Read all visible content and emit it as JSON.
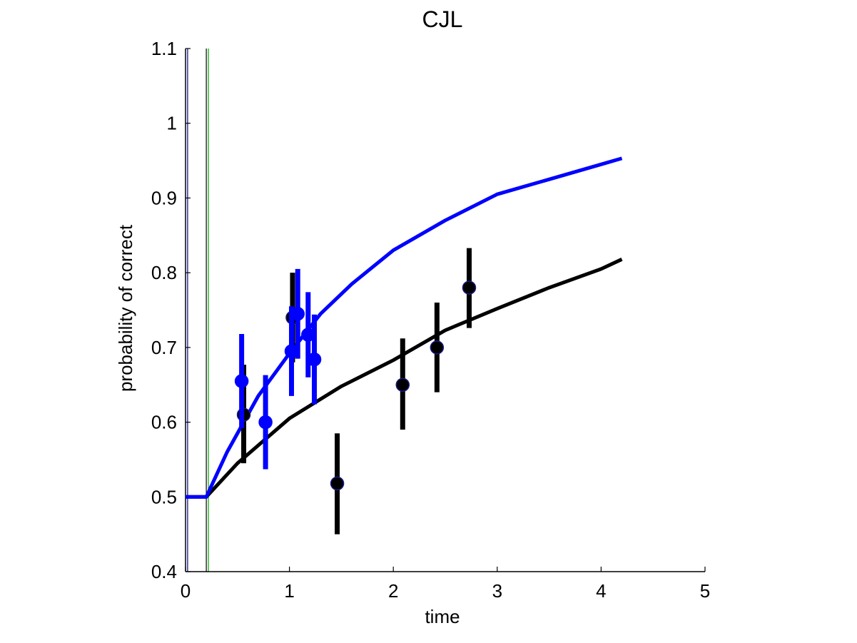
{
  "chart_data": {
    "type": "line",
    "title": "CJL",
    "xlabel": "time",
    "ylabel": "probability of correct",
    "xlim": [
      0,
      5
    ],
    "ylim": [
      0.4,
      1.1
    ],
    "xticks": [
      "0",
      "1",
      "2",
      "3",
      "4",
      "5"
    ],
    "yticks": [
      "0.4",
      "0.5",
      "0.6",
      "0.7",
      "0.8",
      "0.9",
      "1",
      "1.1"
    ],
    "grid": false,
    "reference_lines": [
      {
        "x": 0.02,
        "color": "#000080"
      },
      {
        "x": 0.2,
        "color": "#000000"
      },
      {
        "x": 0.22,
        "color": "#00aa00"
      }
    ],
    "series": [
      {
        "color": "#000000",
        "curve": {
          "x": [
            0,
            0.2,
            0.5,
            1.0,
            1.5,
            2.0,
            2.5,
            3.0,
            3.5,
            4.0,
            4.2
          ],
          "y": [
            0.5,
            0.5,
            0.545,
            0.605,
            0.648,
            0.683,
            0.723,
            0.752,
            0.78,
            0.805,
            0.818
          ]
        },
        "points": [
          {
            "x": 0.56,
            "y": 0.61,
            "err": [
              0.545,
              0.677
            ]
          },
          {
            "x": 1.03,
            "y": 0.74,
            "err": [
              0.68,
              0.8
            ]
          },
          {
            "x": 1.46,
            "y": 0.518,
            "err": [
              0.45,
              0.585
            ]
          },
          {
            "x": 2.09,
            "y": 0.65,
            "err": [
              0.59,
              0.712
            ]
          },
          {
            "x": 2.42,
            "y": 0.7,
            "err": [
              0.64,
              0.76
            ]
          },
          {
            "x": 2.73,
            "y": 0.78,
            "err": [
              0.726,
              0.833
            ]
          }
        ]
      },
      {
        "color": "#0000ff",
        "curve": {
          "x": [
            0,
            0.2,
            0.4,
            0.7,
            1.0,
            1.3,
            1.6,
            2.0,
            2.5,
            3.0,
            3.5,
            4.0,
            4.2
          ],
          "y": [
            0.5,
            0.5,
            0.56,
            0.635,
            0.692,
            0.745,
            0.785,
            0.83,
            0.87,
            0.905,
            0.925,
            0.945,
            0.953
          ]
        },
        "points": [
          {
            "x": 0.54,
            "y": 0.655,
            "err": [
              0.592,
              0.718
            ]
          },
          {
            "x": 0.77,
            "y": 0.6,
            "err": [
              0.537,
              0.663
            ]
          },
          {
            "x": 1.02,
            "y": 0.695,
            "err": [
              0.635,
              0.755
            ]
          },
          {
            "x": 1.08,
            "y": 0.745,
            "err": [
              0.685,
              0.805
            ]
          },
          {
            "x": 1.18,
            "y": 0.717,
            "err": [
              0.66,
              0.774
            ]
          },
          {
            "x": 1.24,
            "y": 0.684,
            "err": [
              0.624,
              0.744
            ]
          }
        ]
      }
    ]
  }
}
